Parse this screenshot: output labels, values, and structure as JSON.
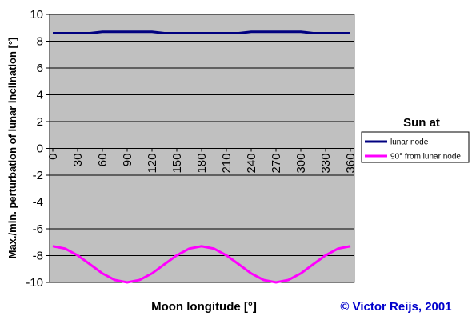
{
  "chart_data": {
    "type": "line",
    "ylabel": "Max./min. perturbation of lunar inclination [°]",
    "xlabel": "Moon longitude [°]",
    "annotation": "© Victor Reijs, 2001",
    "legend_title": "Sun at",
    "x": [
      0,
      15,
      30,
      45,
      60,
      75,
      90,
      105,
      120,
      135,
      150,
      165,
      180,
      195,
      210,
      225,
      240,
      255,
      270,
      285,
      300,
      315,
      330,
      345,
      360
    ],
    "series": [
      {
        "name": "lunar node",
        "color": "#000080",
        "values": [
          8.6,
          8.6,
          8.6,
          8.6,
          8.7,
          8.7,
          8.7,
          8.7,
          8.7,
          8.6,
          8.6,
          8.6,
          8.6,
          8.6,
          8.6,
          8.6,
          8.7,
          8.7,
          8.7,
          8.7,
          8.7,
          8.6,
          8.6,
          8.6,
          8.6
        ]
      },
      {
        "name": "90° from lunar node",
        "color": "#ff00ff",
        "values": [
          -7.3,
          -7.48,
          -7.98,
          -8.65,
          -9.33,
          -9.82,
          -10,
          -9.82,
          -9.33,
          -8.65,
          -7.98,
          -7.48,
          -7.3,
          -7.48,
          -7.98,
          -8.65,
          -9.33,
          -9.82,
          -10,
          -9.82,
          -9.33,
          -8.65,
          -7.98,
          -7.48,
          -7.3
        ]
      }
    ],
    "xlim": [
      0,
      360
    ],
    "xticks": [
      0,
      30,
      60,
      90,
      120,
      150,
      180,
      210,
      240,
      270,
      300,
      330,
      360
    ],
    "ylim": [
      -10,
      10
    ],
    "yticks": [
      -10,
      -8,
      -6,
      -4,
      -2,
      0,
      2,
      4,
      6,
      8,
      10
    ],
    "grid": true,
    "legend": "right",
    "background": "#c0c0c0"
  }
}
